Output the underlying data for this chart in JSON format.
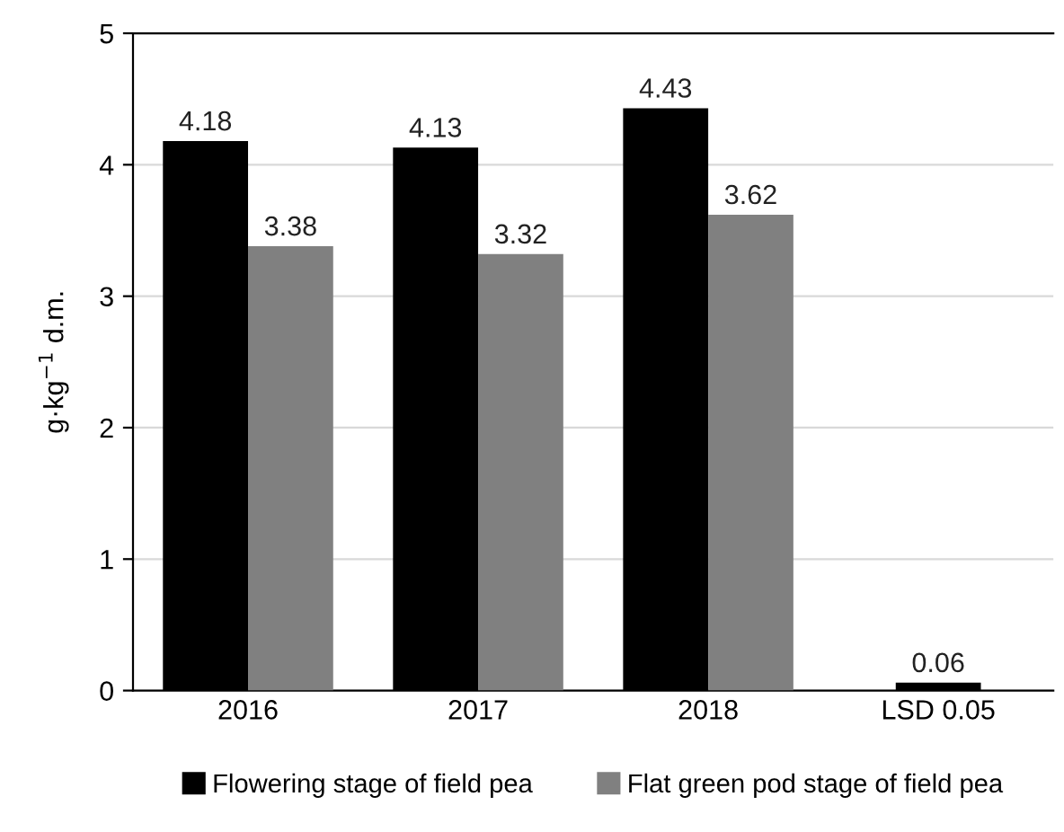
{
  "chart_data": {
    "type": "bar",
    "ylabel": "g·kg$^{−1}$ d.m.",
    "categories": [
      "2016",
      "2017",
      "2018",
      "LSD 0.05"
    ],
    "series": [
      {
        "name": "Flowering stage of field pea",
        "color": "#000000",
        "values": [
          4.18,
          4.13,
          4.43,
          null
        ]
      },
      {
        "name": "Flat green pod stage of field pea",
        "color": "#808080",
        "values": [
          3.38,
          3.32,
          3.62,
          null
        ]
      },
      {
        "color": "#000000",
        "values": [
          null,
          null,
          null,
          0.06
        ]
      }
    ],
    "ylim": [
      0,
      5
    ],
    "yticks": [
      0,
      1,
      2,
      3,
      4,
      5
    ],
    "grid": "y",
    "legend": "bottom",
    "data_labels": true
  }
}
